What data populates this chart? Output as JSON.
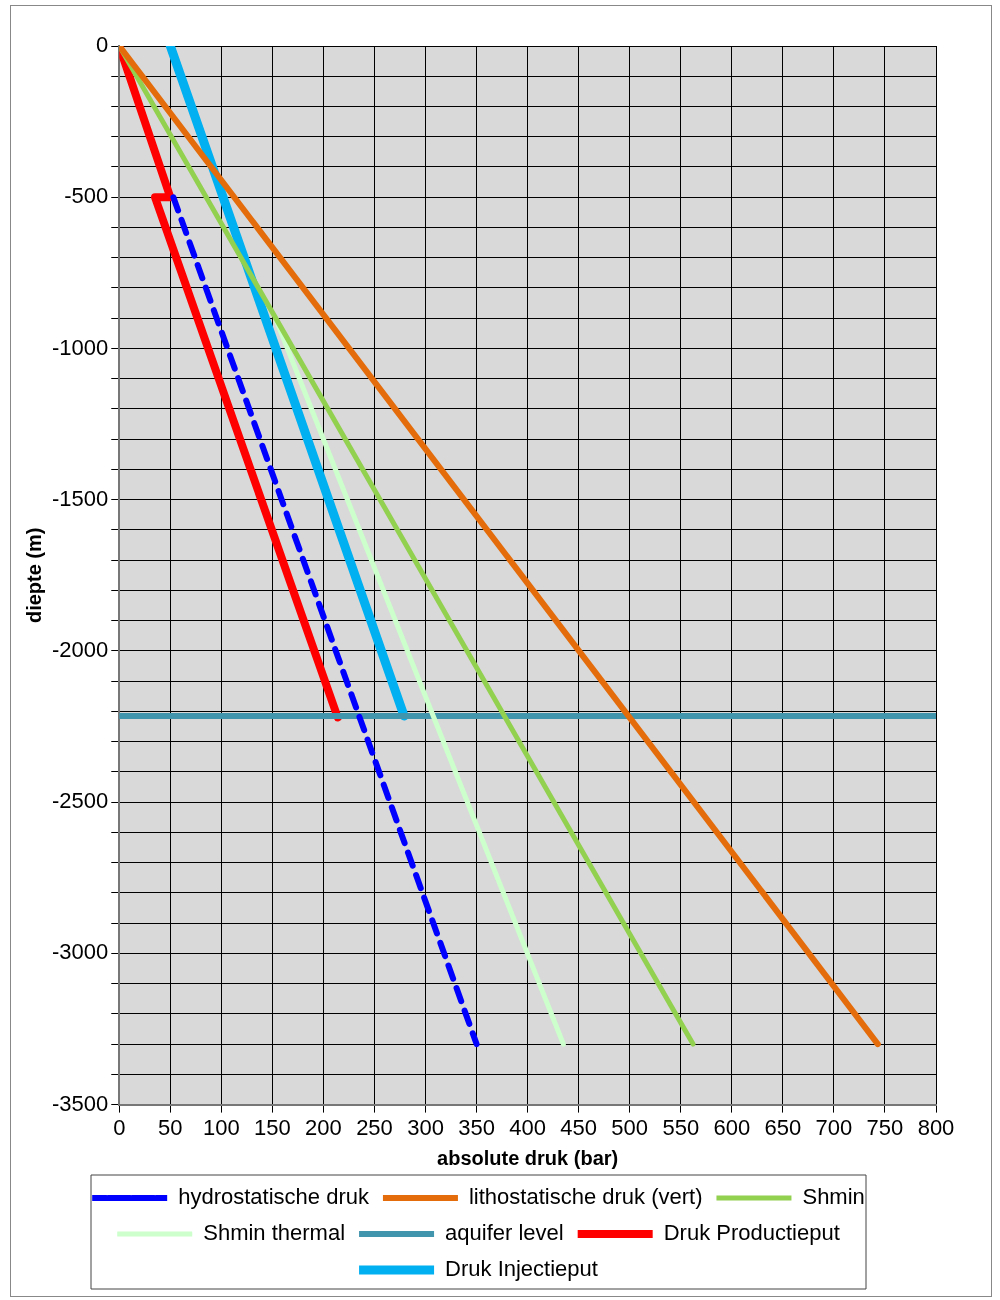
{
  "chart_data": {
    "type": "line",
    "xlabel": "absolute druk (bar)",
    "ylabel": "diepte (m)",
    "xlim": [
      0,
      800
    ],
    "xticks": [
      0,
      50,
      100,
      150,
      200,
      250,
      300,
      350,
      400,
      450,
      500,
      550,
      600,
      650,
      700,
      750,
      800
    ],
    "ylim": [
      -3500,
      0
    ],
    "yticks": [
      0,
      {
        "value": -100,
        "label": null
      },
      {
        "value": -200,
        "label": null
      },
      {
        "value": -300,
        "label": null
      },
      {
        "value": -400,
        "label": null
      },
      -500,
      {
        "value": -600,
        "label": null
      },
      {
        "value": -700,
        "label": null
      },
      {
        "value": -800,
        "label": null
      },
      {
        "value": -900,
        "label": null
      },
      -1000,
      {
        "value": -1100,
        "label": null
      },
      {
        "value": -1200,
        "label": null
      },
      {
        "value": -1300,
        "label": null
      },
      {
        "value": -1400,
        "label": null
      },
      -1500,
      {
        "value": -1600,
        "label": null
      },
      {
        "value": -1700,
        "label": null
      },
      {
        "value": -1800,
        "label": null
      },
      {
        "value": -1900,
        "label": null
      },
      -2000,
      {
        "value": -2100,
        "label": null
      },
      {
        "value": -2200,
        "label": null
      },
      {
        "value": -2300,
        "label": null
      },
      {
        "value": -2400,
        "label": null
      },
      -2500,
      {
        "value": -2600,
        "label": null
      },
      {
        "value": -2700,
        "label": null
      },
      {
        "value": -2800,
        "label": null
      },
      {
        "value": -2900,
        "label": null
      },
      -3000,
      {
        "value": -3100,
        "label": null
      },
      {
        "value": -3200,
        "label": null
      },
      {
        "value": -3300,
        "label": null
      },
      {
        "value": -3400,
        "label": null
      },
      -3500
    ],
    "grid": true,
    "legend": "bottom",
    "marker": "none",
    "series": [
      {
        "name": "hydrostatische druk",
        "color": "#0000ff",
        "line_style": "dashed",
        "x": [
          53,
          350
        ],
        "values": [
          -500,
          -3300
        ]
      },
      {
        "name": "lithostatische druk (vert)",
        "color": "#e46c0a",
        "x": [
          0,
          743
        ],
        "values": [
          0,
          -3300
        ]
      },
      {
        "name": "Shmin",
        "color": "#92d050",
        "x": [
          0,
          562
        ],
        "values": [
          0,
          -3300
        ]
      },
      {
        "name": "Shmin thermal",
        "color": "#ccffcc",
        "x": [
          153,
          435
        ],
        "values": [
          -900,
          -3300
        ]
      },
      {
        "name": "aquifer level",
        "color": "#4195ad",
        "x": [
          0,
          800
        ],
        "values": [
          -2215,
          -2215
        ]
      },
      {
        "name": "Druk Productieput",
        "color": "#ff0000",
        "x": [
          0,
          50,
          35,
          214
        ],
        "values": [
          0,
          -500,
          -500,
          -2220
        ]
      },
      {
        "name": "Druk Injectieput",
        "color": "#00b0f0",
        "x": [
          50,
          279
        ],
        "values": [
          0,
          -2215
        ]
      }
    ]
  }
}
